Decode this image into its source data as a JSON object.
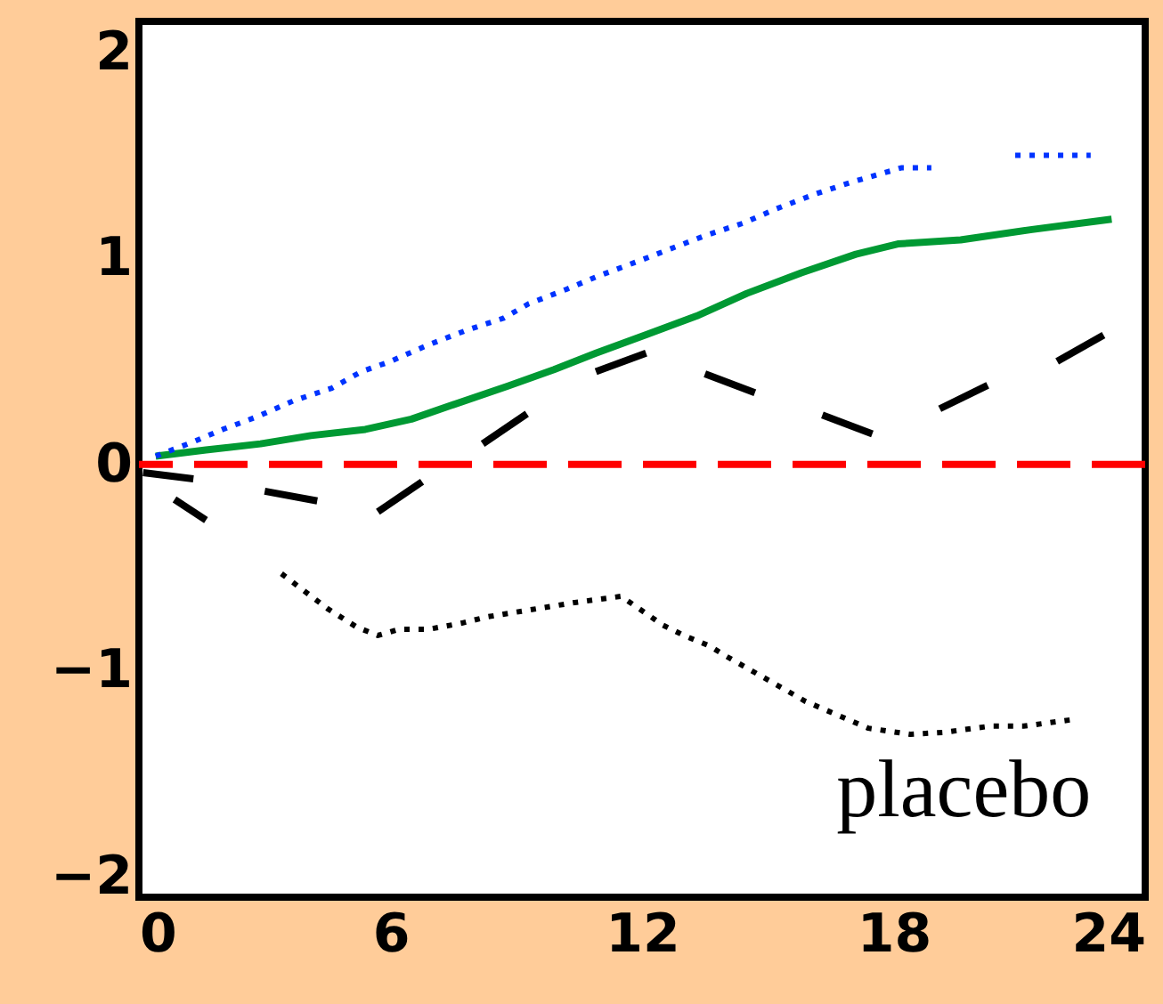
{
  "chart_data": {
    "type": "line",
    "xlim": [
      0,
      24
    ],
    "xticks": [
      0,
      6,
      12,
      18,
      24
    ],
    "ylim": [
      -2.1,
      2.15
    ],
    "yticks": [
      -2,
      -1,
      0,
      1,
      2
    ],
    "grid": false,
    "marker": "none",
    "series": [
      {
        "color": "#0033ff",
        "line_style": "dotted",
        "x": [
          0.4,
          1.3,
          2.0,
          2.8,
          3.7,
          4.6,
          5.3,
          6.0,
          6.9,
          7.8,
          8.7,
          9.3,
          10.2,
          10.9,
          11.7,
          12.6,
          13.5,
          14.4,
          15.2,
          16.1,
          17.0,
          18.2,
          18.9,
          null,
          20.9,
          21.7,
          22.7
        ],
        "values": [
          0.04,
          0.11,
          0.17,
          0.23,
          0.31,
          0.37,
          0.45,
          0.5,
          0.58,
          0.65,
          0.71,
          0.78,
          0.85,
          0.91,
          0.97,
          1.04,
          1.11,
          1.17,
          1.24,
          1.31,
          1.37,
          1.44,
          1.44,
          null,
          1.5,
          1.5,
          1.5
        ]
      },
      {
        "color": "#009933",
        "line_style": "solid",
        "x": [
          0.4,
          1.6,
          2.9,
          4.1,
          5.4,
          6.5,
          7.5,
          8.8,
          9.9,
          10.9,
          12.1,
          13.3,
          14.5,
          15.8,
          17.1,
          18.1,
          19.6,
          21.3,
          23.2
        ],
        "values": [
          0.04,
          0.07,
          0.1,
          0.14,
          0.17,
          0.22,
          0.29,
          0.38,
          0.46,
          0.54,
          0.63,
          0.72,
          0.83,
          0.93,
          1.02,
          1.07,
          1.09,
          1.14,
          1.19
        ]
      },
      {
        "color": "#000000",
        "line_style": "dashed",
        "x": [
          0.1,
          1.3,
          null,
          0.85,
          1.6,
          null,
          3.0,
          4.6,
          null,
          5.7,
          7.0,
          null,
          8.2,
          9.5,
          null,
          10.9,
          12.1,
          null,
          13.5,
          14.8,
          null,
          16.3,
          17.6,
          null,
          19.1,
          20.5,
          null,
          21.9,
          23.2
        ],
        "values": [
          -0.04,
          -0.07,
          null,
          -0.17,
          -0.27,
          null,
          -0.13,
          -0.19,
          null,
          -0.23,
          -0.05,
          null,
          0.1,
          0.28,
          null,
          0.45,
          0.54,
          null,
          0.44,
          0.34,
          null,
          0.24,
          0.14,
          null,
          0.27,
          0.41,
          null,
          0.5,
          0.65
        ]
      },
      {
        "name": "placebo",
        "color": "#000000",
        "line_style": "dotted",
        "x": [
          3.4,
          4.5,
          5.2,
          5.7,
          6.2,
          6.9,
          7.7,
          8.3,
          9.2,
          10.4,
          11.5,
          12.5,
          13.0,
          13.6,
          14.0,
          15.3,
          15.9,
          17.4,
          18.4,
          19.2,
          20.3,
          21.1,
          22.2
        ],
        "values": [
          -0.53,
          -0.7,
          -0.79,
          -0.83,
          -0.8,
          -0.8,
          -0.77,
          -0.74,
          -0.71,
          -0.67,
          -0.64,
          -0.78,
          -0.83,
          -0.88,
          -0.93,
          -1.08,
          -1.15,
          -1.28,
          -1.31,
          -1.3,
          -1.27,
          -1.27,
          -1.24
        ]
      }
    ],
    "ref_lines": [
      {
        "axis": "y",
        "value": 0,
        "color": "#ff0000",
        "line_style": "dashed"
      }
    ]
  }
}
